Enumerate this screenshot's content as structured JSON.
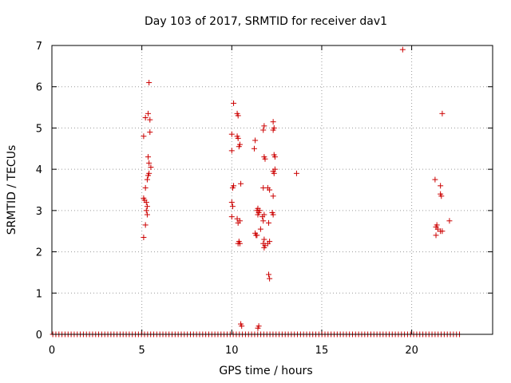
{
  "chart_data": {
    "type": "scatter",
    "title": "Day 103 of 2017, SRMTID for receiver dav1",
    "xlabel": "GPS time / hours",
    "ylabel": "SRMTID / TECUs",
    "xlim": [
      0,
      24.5
    ],
    "ylim": [
      0,
      7
    ],
    "xticks": [
      0,
      5,
      10,
      15,
      20
    ],
    "yticks": [
      0,
      1,
      2,
      3,
      4,
      5,
      6,
      7
    ],
    "grid": true,
    "grid_style": "dotted",
    "marker": "+",
    "color": "#cc0000",
    "zero_baseline": {
      "y": 0,
      "x_start": 0.05,
      "x_end": 22.75,
      "step": 0.17
    },
    "points": [
      [
        5.4,
        6.1
      ],
      [
        5.2,
        5.25
      ],
      [
        5.35,
        5.35
      ],
      [
        5.45,
        5.2
      ],
      [
        5.1,
        4.8
      ],
      [
        5.45,
        4.9
      ],
      [
        5.35,
        4.3
      ],
      [
        5.4,
        4.15
      ],
      [
        5.5,
        4.05
      ],
      [
        5.4,
        3.9
      ],
      [
        5.35,
        3.85
      ],
      [
        5.3,
        3.75
      ],
      [
        5.2,
        3.55
      ],
      [
        5.1,
        3.3
      ],
      [
        5.15,
        3.25
      ],
      [
        5.25,
        3.2
      ],
      [
        5.3,
        3.1
      ],
      [
        5.25,
        3.0
      ],
      [
        5.3,
        2.9
      ],
      [
        5.2,
        2.65
      ],
      [
        5.1,
        2.35
      ],
      [
        10.1,
        5.6
      ],
      [
        10.3,
        5.35
      ],
      [
        10.35,
        5.3
      ],
      [
        10.0,
        4.85
      ],
      [
        10.3,
        4.8
      ],
      [
        10.35,
        4.75
      ],
      [
        10.4,
        4.55
      ],
      [
        10.45,
        4.6
      ],
      [
        10.0,
        4.45
      ],
      [
        10.5,
        3.65
      ],
      [
        10.05,
        3.55
      ],
      [
        10.1,
        3.6
      ],
      [
        10.0,
        3.2
      ],
      [
        10.05,
        3.1
      ],
      [
        10.0,
        2.85
      ],
      [
        10.3,
        2.8
      ],
      [
        10.45,
        2.75
      ],
      [
        10.35,
        2.7
      ],
      [
        10.4,
        2.25
      ],
      [
        10.45,
        2.2
      ],
      [
        10.35,
        2.2
      ],
      [
        10.5,
        0.25
      ],
      [
        10.55,
        0.2
      ],
      [
        11.3,
        4.7
      ],
      [
        11.25,
        4.5
      ],
      [
        11.4,
        3.0
      ],
      [
        11.45,
        3.05
      ],
      [
        11.5,
        2.95
      ],
      [
        11.55,
        3.0
      ],
      [
        11.45,
        2.9
      ],
      [
        11.6,
        2.55
      ],
      [
        11.3,
        2.45
      ],
      [
        11.35,
        2.4
      ],
      [
        11.4,
        2.4
      ],
      [
        11.5,
        0.2
      ],
      [
        11.45,
        0.15
      ],
      [
        11.8,
        5.05
      ],
      [
        11.75,
        4.95
      ],
      [
        11.8,
        4.3
      ],
      [
        11.85,
        4.25
      ],
      [
        11.75,
        3.55
      ],
      [
        11.8,
        2.9
      ],
      [
        11.7,
        2.85
      ],
      [
        11.75,
        2.75
      ],
      [
        11.8,
        2.3
      ],
      [
        11.75,
        2.2
      ],
      [
        11.85,
        2.15
      ],
      [
        11.8,
        2.1
      ],
      [
        12.1,
        2.25
      ],
      [
        12.0,
        2.2
      ],
      [
        12.0,
        3.55
      ],
      [
        12.1,
        3.5
      ],
      [
        12.05,
        2.7
      ],
      [
        12.05,
        1.45
      ],
      [
        12.1,
        1.35
      ],
      [
        12.3,
        5.15
      ],
      [
        12.35,
        5.0
      ],
      [
        12.3,
        4.95
      ],
      [
        12.35,
        4.35
      ],
      [
        12.4,
        4.3
      ],
      [
        12.3,
        3.95
      ],
      [
        12.35,
        3.9
      ],
      [
        12.4,
        4.0
      ],
      [
        12.3,
        3.35
      ],
      [
        12.25,
        2.95
      ],
      [
        12.3,
        2.9
      ],
      [
        13.6,
        3.9
      ],
      [
        19.5,
        6.9
      ],
      [
        21.7,
        5.35
      ],
      [
        21.3,
        3.75
      ],
      [
        21.6,
        3.6
      ],
      [
        21.6,
        3.4
      ],
      [
        21.65,
        3.35
      ],
      [
        22.1,
        2.75
      ],
      [
        21.4,
        2.65
      ],
      [
        21.35,
        2.6
      ],
      [
        21.45,
        2.55
      ],
      [
        21.6,
        2.5
      ],
      [
        21.35,
        2.4
      ],
      [
        21.7,
        2.5
      ]
    ]
  }
}
